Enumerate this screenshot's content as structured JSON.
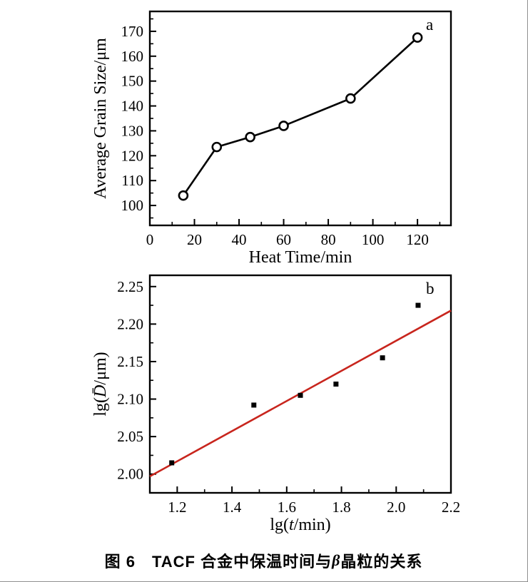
{
  "caption": {
    "text": "图 6　TACF 合金中保温时间与 β 晶粒的关系",
    "parts": [
      {
        "text": "图 6　TACF 合金中保温时间与 ",
        "italic": false
      },
      {
        "text": "β",
        "italic": true
      },
      {
        "text": " 晶粒的关系",
        "italic": false
      }
    ]
  },
  "chart_data": [
    {
      "id": "a",
      "type": "line",
      "panel_label": "a",
      "x": [
        15,
        30,
        45,
        60,
        90,
        120
      ],
      "y": [
        104,
        123.5,
        127.5,
        132,
        143,
        167.5
      ],
      "xlabel": "Heat Time/min",
      "ylabel": "Average Grain Size/μm",
      "xlabel_parts": [
        {
          "text": "Heat Time/min",
          "italic": false
        }
      ],
      "ylabel_parts": [
        {
          "text": "Average Grain Size/μm",
          "italic": false
        }
      ],
      "xlim": [
        0,
        135
      ],
      "ylim": [
        92,
        178
      ],
      "xticks": [
        0,
        20,
        40,
        60,
        80,
        100,
        120
      ],
      "xtick_labels": [
        "0",
        "20",
        "40",
        "60",
        "80",
        "100",
        "120"
      ],
      "yticks": [
        100,
        110,
        120,
        130,
        140,
        150,
        160,
        170
      ],
      "ytick_labels": [
        "100",
        "110",
        "120",
        "130",
        "140",
        "150",
        "160",
        "170"
      ],
      "xtick_minor_step": 10,
      "ytick_minor_step": 5,
      "marker": "open-circle",
      "line_color": "#000000",
      "marker_color": "#000000",
      "grid": false,
      "legend": "none"
    },
    {
      "id": "b",
      "type": "scatter",
      "panel_label": "b",
      "x": [
        1.18,
        1.48,
        1.65,
        1.78,
        1.95,
        2.08
      ],
      "y": [
        2.015,
        2.092,
        2.105,
        2.12,
        2.155,
        2.225
      ],
      "fit_line": {
        "x1": 1.1,
        "y1": 1.997,
        "x2": 2.2,
        "y2": 2.218,
        "color": "#c8251d"
      },
      "xlabel": "lg(t/min)",
      "ylabel": "lg(D̄/μm)",
      "xlabel_parts": [
        {
          "text": "lg(",
          "italic": false
        },
        {
          "text": "t",
          "italic": true
        },
        {
          "text": "/min)",
          "italic": false
        }
      ],
      "ylabel_parts": [
        {
          "text": "lg(",
          "italic": false
        },
        {
          "text": "D̄",
          "italic": true
        },
        {
          "text": "/μm)",
          "italic": false
        }
      ],
      "xlim": [
        1.1,
        2.2
      ],
      "ylim": [
        1.975,
        2.265
      ],
      "xticks": [
        1.2,
        1.4,
        1.6,
        1.8,
        2.0,
        2.2
      ],
      "xtick_labels": [
        "1.2",
        "1.4",
        "1.6",
        "1.8",
        "2.0",
        "2.2"
      ],
      "yticks": [
        2.0,
        2.05,
        2.1,
        2.15,
        2.2,
        2.25
      ],
      "ytick_labels": [
        "2.00",
        "2.05",
        "2.10",
        "2.15",
        "2.20",
        "2.25"
      ],
      "xtick_minor_step": 0.1,
      "ytick_minor_step": 0.025,
      "marker": "filled-square",
      "marker_color": "#000000",
      "grid": false,
      "legend": "none"
    }
  ]
}
